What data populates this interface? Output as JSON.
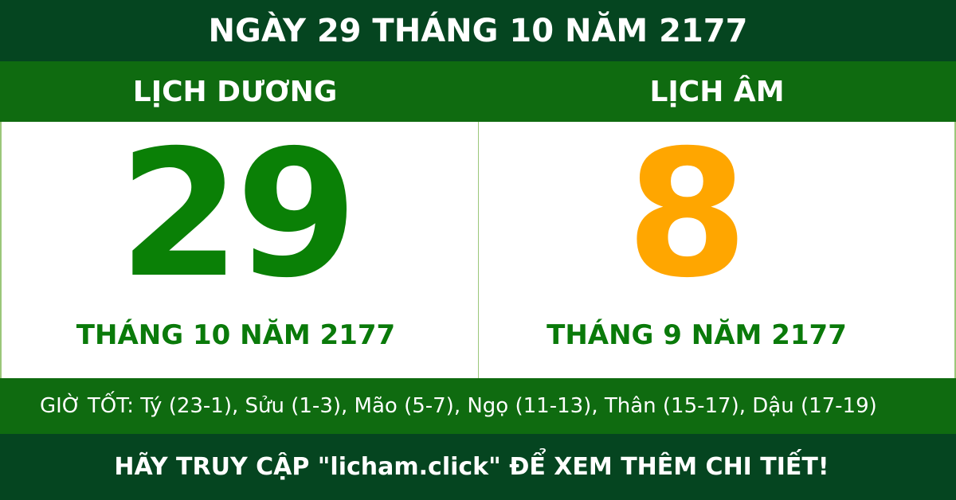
{
  "header": {
    "title": "NGÀY 29 THÁNG 10 NĂM 2177"
  },
  "solar": {
    "label": "LỊCH DƯƠNG",
    "day": "29",
    "month_year": "THÁNG 10 NĂM 2177"
  },
  "lunar": {
    "label": "LỊCH ÂM",
    "day": "8",
    "month_year": "THÁNG 9 NĂM 2177"
  },
  "good_hours": "GIỜ TỐT: Tý (23-1), Sửu (1-3), Mão (5-7), Ngọ (11-13), Thân (15-17), Dậu (17-19)",
  "footer": {
    "text": "HÃY TRUY CẬP \"licham.click\" ĐỂ XEM THÊM CHI TIẾT!"
  },
  "colors": {
    "dark_green": "#054520",
    "band_green": "#0f6b10",
    "solar_day": "#0a8006",
    "lunar_day": "#ffa600"
  }
}
